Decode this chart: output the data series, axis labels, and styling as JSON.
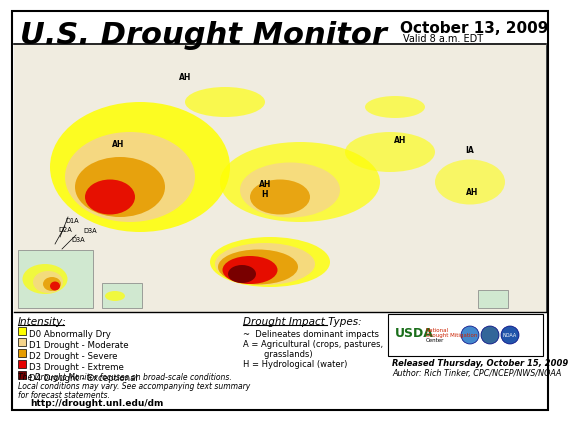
{
  "title": "U.S. Drought Monitor",
  "date_line1": "October 13, 2009",
  "date_line2": "Valid 8 a.m. EDT",
  "bg_color": "#ffffff",
  "border_color": "#000000",
  "legend_title": "Intensity:",
  "legend_items": [
    {
      "label": "D0 Abnormally Dry",
      "color": "#ffff00"
    },
    {
      "label": "D1 Drought - Moderate",
      "color": "#f5d58c"
    },
    {
      "label": "D2 Drought - Severe",
      "color": "#e69c00"
    },
    {
      "label": "D3 Drought - Extreme",
      "color": "#e60000"
    },
    {
      "label": "D4 Drought - Exceptional",
      "color": "#730000"
    }
  ],
  "impact_title": "Drought Impact Types:",
  "impact_texts": [
    "~  Delineates dominant impacts",
    "A = Agricultural (crops, pastures,",
    "        grasslands)",
    "H = Hydrological (water)"
  ],
  "footnote1": "The Drought Monitor focuses on broad-scale conditions.",
  "footnote2": "Local conditions may vary. See accompanying text summary",
  "footnote3": "for forecast statements.",
  "url": "http://drought.unl.edu/dm",
  "released": "Released Thursday, October 15, 2009",
  "author": "Author: Rich Tinker, CPC/NCEP/NWS/NOAA",
  "map_bg_color": "#cce8f4",
  "map_land_color": "#f0ece0",
  "d0_color": "#ffff00",
  "d1_color": "#f5d58c",
  "d2_color": "#e69c00",
  "d3_color": "#e60000",
  "d4_color": "#730000"
}
